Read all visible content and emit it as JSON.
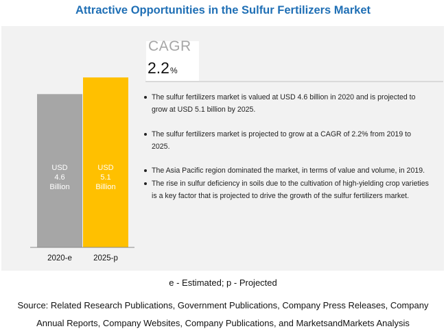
{
  "title": "Attractive Opportunities in the Sulfur Fertilizers Market",
  "cagr": {
    "label": "CAGR",
    "value": "2.2",
    "unit": "%"
  },
  "bullets": [
    "The sulfur fertilizers market is valued at USD 4.6 billion in 2020 and is projected to grow at USD 5.1 billion by 2025.",
    "The sulfur fertilizers market is projected to grow at a CAGR of 2.2% from 2019 to 2025.",
    "The Asia Pacific region dominated the market, in terms of value and volume, in 2019.",
    "The rise in sulfur deficiency in soils due to the cultivation of high-yielding crop varieties is a key factor that is projected to drive the growth of the sulfur fertilizers market."
  ],
  "footnote": "e - Estimated; p - Projected",
  "source": "Source: Related Research Publications, Government Publications, Company Press Releases, Company Annual Reports, Company Websites, Company Publications, and MarketsandMarkets Analysis",
  "colors": {
    "title": "#1f6fb5",
    "bar_2020": "#a6a6a6",
    "bar_2025": "#ffc000",
    "panel": "#f2f2f2"
  },
  "chart_data": {
    "type": "bar",
    "categories": [
      "2020-e",
      "2025-p"
    ],
    "values": [
      4.6,
      5.1
    ],
    "labels": [
      [
        "USD",
        "4.6",
        "Billion"
      ],
      [
        "USD",
        "5.1",
        "Billion"
      ]
    ],
    "ylim": [
      0,
      5.1
    ]
  }
}
